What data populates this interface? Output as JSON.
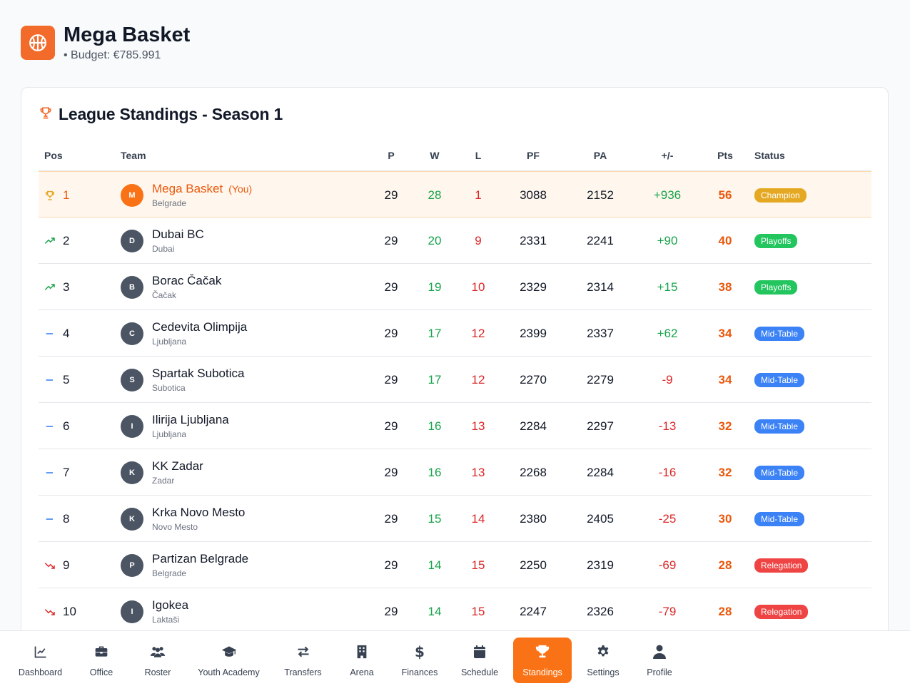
{
  "header": {
    "club_name": "Mega Basket",
    "budget": "• Budget: €785.991",
    "logo_icon": "basketball-icon"
  },
  "standings": {
    "title": "League Standings - Season 1",
    "title_icon": "trophy-icon",
    "columns": {
      "pos": "Pos",
      "team": "Team",
      "p": "P",
      "w": "W",
      "l": "L",
      "pf": "PF",
      "pa": "PA",
      "diff": "+/-",
      "pts": "Pts",
      "status": "Status"
    },
    "you_label": "(You)",
    "rows": [
      {
        "pos": "1",
        "trend": "trophy",
        "initial": "M",
        "team": "Mega Basket",
        "city": "Belgrade",
        "you": true,
        "p": "29",
        "w": "28",
        "l": "1",
        "pf": "3088",
        "pa": "2152",
        "diff": "+936",
        "pts": "56",
        "status": "Champion"
      },
      {
        "pos": "2",
        "trend": "up",
        "initial": "D",
        "team": "Dubai BC",
        "city": "Dubai",
        "p": "29",
        "w": "20",
        "l": "9",
        "pf": "2331",
        "pa": "2241",
        "diff": "+90",
        "pts": "40",
        "status": "Playoffs"
      },
      {
        "pos": "3",
        "trend": "up",
        "initial": "B",
        "team": "Borac Čačak",
        "city": "Čačak",
        "p": "29",
        "w": "19",
        "l": "10",
        "pf": "2329",
        "pa": "2314",
        "diff": "+15",
        "pts": "38",
        "status": "Playoffs"
      },
      {
        "pos": "4",
        "trend": "same",
        "initial": "C",
        "team": "Cedevita Olimpija",
        "city": "Ljubljana",
        "p": "29",
        "w": "17",
        "l": "12",
        "pf": "2399",
        "pa": "2337",
        "diff": "+62",
        "pts": "34",
        "status": "Mid-Table"
      },
      {
        "pos": "5",
        "trend": "same",
        "initial": "S",
        "team": "Spartak Subotica",
        "city": "Subotica",
        "p": "29",
        "w": "17",
        "l": "12",
        "pf": "2270",
        "pa": "2279",
        "diff": "-9",
        "pts": "34",
        "status": "Mid-Table"
      },
      {
        "pos": "6",
        "trend": "same",
        "initial": "I",
        "team": "Ilirija Ljubljana",
        "city": "Ljubljana",
        "p": "29",
        "w": "16",
        "l": "13",
        "pf": "2284",
        "pa": "2297",
        "diff": "-13",
        "pts": "32",
        "status": "Mid-Table"
      },
      {
        "pos": "7",
        "trend": "same",
        "initial": "K",
        "team": "KK Zadar",
        "city": "Zadar",
        "p": "29",
        "w": "16",
        "l": "13",
        "pf": "2268",
        "pa": "2284",
        "diff": "-16",
        "pts": "32",
        "status": "Mid-Table"
      },
      {
        "pos": "8",
        "trend": "same",
        "initial": "K",
        "team": "Krka Novo Mesto",
        "city": "Novo Mesto",
        "p": "29",
        "w": "15",
        "l": "14",
        "pf": "2380",
        "pa": "2405",
        "diff": "-25",
        "pts": "30",
        "status": "Mid-Table"
      },
      {
        "pos": "9",
        "trend": "down",
        "initial": "P",
        "team": "Partizan Belgrade",
        "city": "Belgrade",
        "p": "29",
        "w": "14",
        "l": "15",
        "pf": "2250",
        "pa": "2319",
        "diff": "-69",
        "pts": "28",
        "status": "Relegation"
      },
      {
        "pos": "10",
        "trend": "down",
        "initial": "I",
        "team": "Igokea",
        "city": "Laktaši",
        "p": "29",
        "w": "14",
        "l": "15",
        "pf": "2247",
        "pa": "2326",
        "diff": "-79",
        "pts": "28",
        "status": "Relegation"
      }
    ]
  },
  "status_colors": {
    "Champion": "#e5a823",
    "Playoffs": "#22c55e",
    "Mid-Table": "#3b82f6",
    "Relegation": "#ef4444"
  },
  "colors": {
    "accent": "#f97316",
    "positive": "#16a34a",
    "negative": "#dc2626"
  },
  "nav": [
    {
      "label": "Dashboard",
      "icon": "chart-line-icon"
    },
    {
      "label": "Office",
      "icon": "briefcase-icon"
    },
    {
      "label": "Roster",
      "icon": "users-icon"
    },
    {
      "label": "Youth Academy",
      "icon": "graduation-cap-icon"
    },
    {
      "label": "Transfers",
      "icon": "exchange-arrows-icon"
    },
    {
      "label": "Arena",
      "icon": "building-icon"
    },
    {
      "label": "Finances",
      "icon": "dollar-icon"
    },
    {
      "label": "Schedule",
      "icon": "calendar-icon"
    },
    {
      "label": "Standings",
      "icon": "trophy-icon",
      "active": true
    },
    {
      "label": "Settings",
      "icon": "gear-icon"
    },
    {
      "label": "Profile",
      "icon": "user-icon"
    }
  ]
}
